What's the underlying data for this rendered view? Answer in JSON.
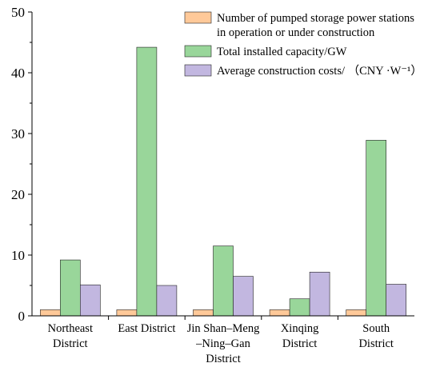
{
  "chart_data": {
    "type": "bar",
    "categories": [
      [
        "Northeast",
        "District"
      ],
      [
        "East District"
      ],
      [
        "Jin Shan–Meng",
        "–Ning–Gan",
        "District"
      ],
      [
        "Xinqing",
        "District"
      ],
      [
        "South",
        "District"
      ]
    ],
    "series": [
      {
        "name": [
          "Number of pumped storage power stations",
          "in operation or under construction"
        ],
        "color": "#ffc999",
        "values": [
          1,
          1,
          1,
          1,
          1
        ]
      },
      {
        "name": [
          "Total installed capacity/GW"
        ],
        "color": "#99d69a",
        "values": [
          9.2,
          44.2,
          11.5,
          2.8,
          28.9
        ]
      },
      {
        "name": [
          "Average construction costs/ （CNY ·W⁻¹）"
        ],
        "color": "#c2b7e0",
        "values": [
          5.1,
          5.0,
          6.5,
          7.2,
          5.2
        ]
      }
    ],
    "yticks": [
      0,
      10,
      20,
      30,
      40,
      50
    ],
    "ylim": [
      0,
      50
    ],
    "grid": false,
    "legend_position": "top-right"
  }
}
